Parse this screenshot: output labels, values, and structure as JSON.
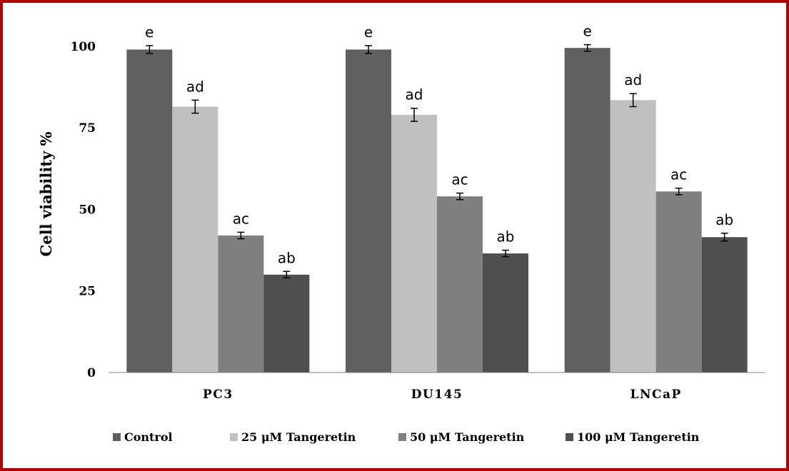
{
  "chart_data": {
    "type": "bar",
    "title": "",
    "xlabel": "",
    "ylabel": "Cell viability %",
    "ylim": [
      0,
      105
    ],
    "yticks": [
      0,
      25,
      50,
      75,
      100
    ],
    "categories": [
      "PC3",
      "DU145",
      "LNCaP"
    ],
    "grid": false,
    "legend_position": "bottom",
    "series": [
      {
        "name": "Control",
        "color": "#606060",
        "values": [
          99,
          99,
          99.5
        ],
        "errors": [
          1.2,
          1.2,
          1.0
        ],
        "labels": [
          "e",
          "e",
          "e"
        ]
      },
      {
        "name": "25 μM Tangeretin",
        "color": "#c0c0c0",
        "values": [
          81.5,
          79,
          83.5
        ],
        "errors": [
          2.0,
          2.0,
          2.0
        ],
        "labels": [
          "ad",
          "ad",
          "ad"
        ]
      },
      {
        "name": "50 μM Tangeretin",
        "color": "#7f7f7f",
        "values": [
          42,
          54,
          55.5
        ],
        "errors": [
          1.0,
          1.0,
          1.0
        ],
        "labels": [
          "ac",
          "ac",
          "ac"
        ]
      },
      {
        "name": "100 μM Tangeretin",
        "color": "#4f4f4f",
        "values": [
          30,
          36.5,
          41.5
        ],
        "errors": [
          1.0,
          1.0,
          1.2
        ],
        "labels": [
          "ab",
          "ab",
          "ab"
        ]
      }
    ]
  }
}
